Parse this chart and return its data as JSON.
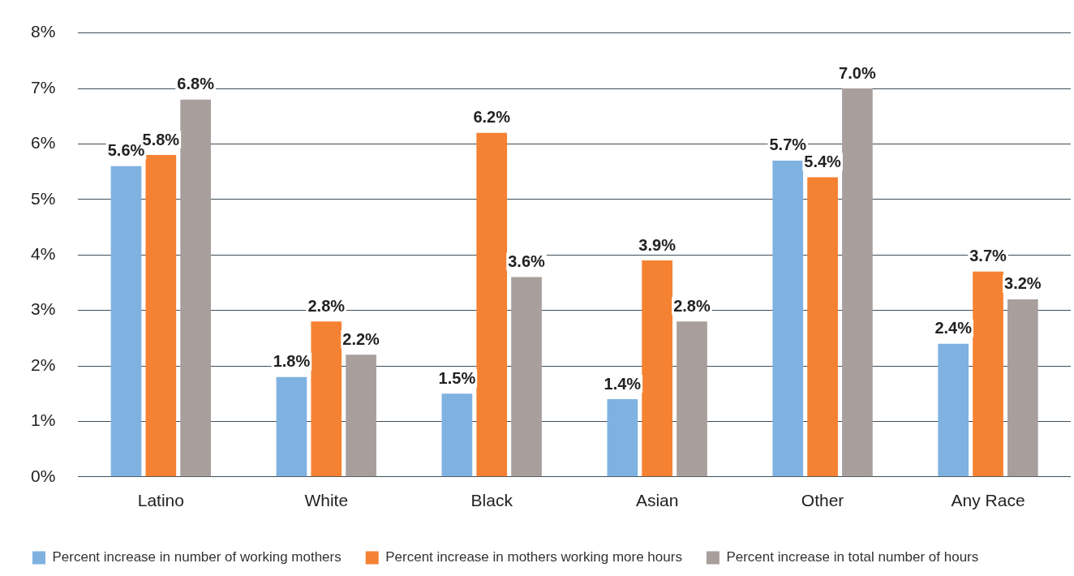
{
  "chart_data": {
    "type": "bar",
    "categories": [
      "Latino",
      "White",
      "Black",
      "Asian",
      "Other",
      "Any Race"
    ],
    "series": [
      {
        "name": "Percent increase in number of working mothers",
        "color": "#7fb2e0",
        "values": [
          5.6,
          1.8,
          1.5,
          1.4,
          5.7,
          2.4
        ],
        "value_labels": [
          "5.6%",
          "1.8%",
          "1.5%",
          "1.4%",
          "5.7%",
          "2.4%"
        ]
      },
      {
        "name": "Percent increase in mothers working more hours",
        "color": "#f58232",
        "values": [
          5.8,
          2.8,
          6.2,
          3.9,
          5.4,
          3.7
        ],
        "value_labels": [
          "5.8%",
          "2.8%",
          "6.2%",
          "3.9%",
          "5.4%",
          "3.7%"
        ]
      },
      {
        "name": "Percent increase in total number of hours",
        "color": "#a89f9c",
        "values": [
          6.8,
          2.2,
          3.6,
          2.8,
          7.0,
          3.2
        ],
        "value_labels": [
          "6.8%",
          "2.2%",
          "3.6%",
          "2.8%",
          "7.0%",
          "3.2%"
        ]
      }
    ],
    "ylim": [
      0,
      8
    ],
    "yticks": [
      {
        "value": 0,
        "label": "0%"
      },
      {
        "value": 1,
        "label": "1%"
      },
      {
        "value": 2,
        "label": "2%"
      },
      {
        "value": 3,
        "label": "3%"
      },
      {
        "value": 4,
        "label": "4%"
      },
      {
        "value": 5,
        "label": "5%"
      },
      {
        "value": 6,
        "label": "6%"
      },
      {
        "value": 7,
        "label": "7%"
      },
      {
        "value": 8,
        "label": "8%"
      }
    ],
    "grid": "y",
    "legend": "bottom"
  }
}
